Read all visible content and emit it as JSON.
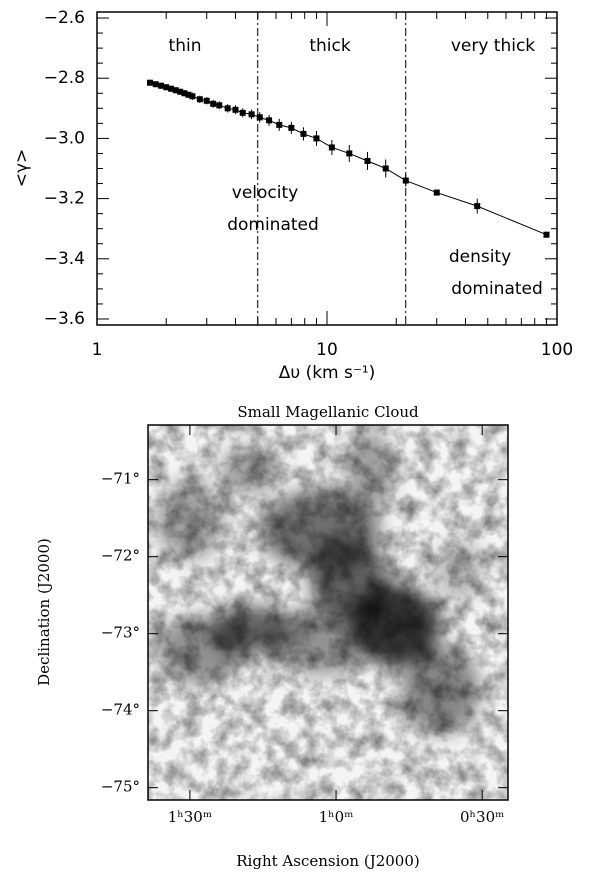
{
  "chart_data": [
    {
      "type": "line",
      "log_x": true,
      "xlabel": "Δυ (km s⁻¹)",
      "ylabel": "<γ>",
      "xlim": [
        1,
        100
      ],
      "ylim": [
        -3.62,
        -2.58
      ],
      "xticks": [
        1,
        10,
        100
      ],
      "yticks": [
        {
          "value": -2.6,
          "label": "−2.6"
        },
        {
          "value": -2.8,
          "label": "−2.8"
        },
        {
          "value": -3.0,
          "label": "−3.0"
        },
        {
          "value": -3.2,
          "label": "−3.2"
        },
        {
          "value": -3.4,
          "label": "−3.4"
        },
        {
          "value": -3.6,
          "label": "−3.6"
        }
      ],
      "color": "#000000",
      "x": [
        1.7,
        1.8,
        1.9,
        2.0,
        2.1,
        2.2,
        2.3,
        2.4,
        2.5,
        2.6,
        2.8,
        3.0,
        3.2,
        3.4,
        3.7,
        4.0,
        4.3,
        4.7,
        5.1,
        5.6,
        6.2,
        7.0,
        7.9,
        9.0,
        10.5,
        12.5,
        15,
        18,
        22,
        30,
        45,
        90
      ],
      "values": [
        -2.815,
        -2.82,
        -2.825,
        -2.83,
        -2.835,
        -2.84,
        -2.845,
        -2.85,
        -2.855,
        -2.86,
        -2.87,
        -2.875,
        -2.885,
        -2.89,
        -2.9,
        -2.905,
        -2.915,
        -2.92,
        -2.93,
        -2.94,
        -2.955,
        -2.965,
        -2.985,
        -3.0,
        -3.03,
        -3.05,
        -3.075,
        -3.1,
        -3.14,
        -3.18,
        -3.225,
        -3.32
      ],
      "errors": [
        0.01,
        0.01,
        0.01,
        0.01,
        0.01,
        0.01,
        0.01,
        0.01,
        0.01,
        0.012,
        0.012,
        0.012,
        0.013,
        0.013,
        0.014,
        0.015,
        0.015,
        0.016,
        0.017,
        0.018,
        0.02,
        0.02,
        0.022,
        0.025,
        0.025,
        0.028,
        0.03,
        0.03,
        0.02,
        0.01,
        0.025,
        0.01
      ],
      "vlines": [
        5,
        22
      ],
      "annotations": [
        "thin",
        "thick",
        "very thick",
        "velocity",
        "dominated",
        "density",
        "dominated"
      ]
    },
    {
      "type": "image",
      "title": "Small Magellanic Cloud",
      "xlabel": "Right Ascension (J2000)",
      "ylabel": "Declination (J2000)",
      "xlim": [
        98.6,
        24.7
      ],
      "ylim": [
        -75.16,
        -70.29
      ],
      "xticks": [
        {
          "value": 90,
          "label": "1ʰ30ᵐ"
        },
        {
          "value": 60,
          "label": "1ʰ0ᵐ"
        },
        {
          "value": 30,
          "label": "0ʰ30ᵐ"
        }
      ],
      "yticks": [
        {
          "value": -71,
          "label": "−71°"
        },
        {
          "value": -72,
          "label": "−72°"
        },
        {
          "value": -73,
          "label": "−73°"
        },
        {
          "value": -74,
          "label": "−74°"
        },
        {
          "value": -75,
          "label": "−75°"
        }
      ]
    }
  ]
}
